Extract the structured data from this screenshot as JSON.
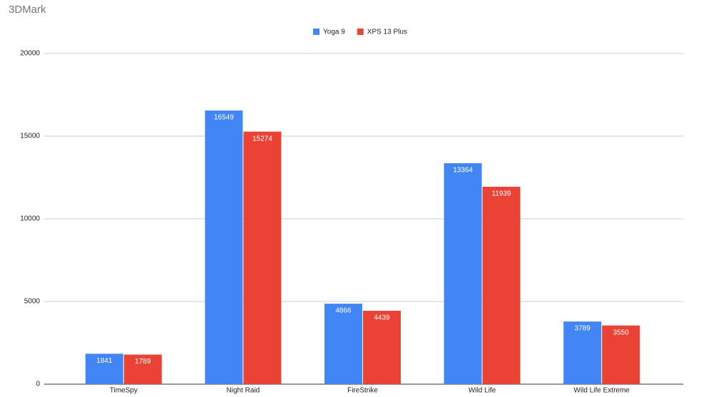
{
  "chart_data": {
    "type": "bar",
    "title": "3DMark",
    "categories": [
      "TimeSpy",
      "Night Raid",
      "FireStrike",
      "Wild Life",
      "Wild Life Extreme"
    ],
    "series": [
      {
        "name": "Yoga 9",
        "color": "#4285f4",
        "values": [
          1841,
          16549,
          4866,
          13364,
          3789
        ]
      },
      {
        "name": "XPS 13 Plus",
        "color": "#ea4335",
        "values": [
          1789,
          15274,
          4439,
          11939,
          3550
        ]
      }
    ],
    "ylim": [
      0,
      20000
    ],
    "yticks": [
      0,
      5000,
      10000,
      15000,
      20000
    ],
    "grid": true,
    "legend": "top"
  }
}
